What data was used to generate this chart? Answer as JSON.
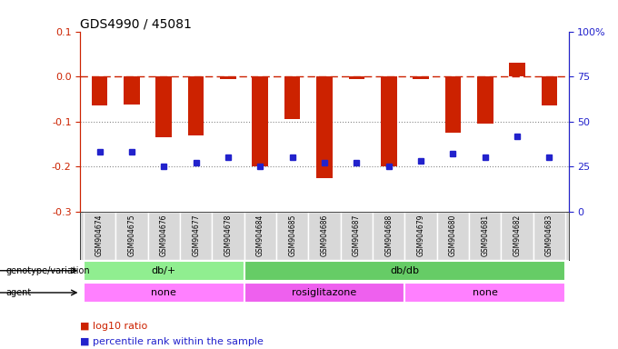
{
  "title": "GDS4990 / 45081",
  "samples": [
    "GSM904674",
    "GSM904675",
    "GSM904676",
    "GSM904677",
    "GSM904678",
    "GSM904684",
    "GSM904685",
    "GSM904686",
    "GSM904687",
    "GSM904688",
    "GSM904679",
    "GSM904680",
    "GSM904681",
    "GSM904682",
    "GSM904683"
  ],
  "log10_ratio": [
    -0.065,
    -0.062,
    -0.135,
    -0.13,
    -0.005,
    -0.2,
    -0.095,
    -0.225,
    -0.005,
    -0.2,
    -0.005,
    -0.125,
    -0.105,
    0.03,
    -0.065
  ],
  "percentile": [
    33,
    33,
    25,
    27,
    30,
    25,
    30,
    27,
    27,
    25,
    28,
    32,
    30,
    42,
    30
  ],
  "genotype_groups": [
    {
      "label": "db/+",
      "start": 0,
      "end": 5,
      "color": "#90EE90"
    },
    {
      "label": "db/db",
      "start": 5,
      "end": 15,
      "color": "#66CC66"
    }
  ],
  "agent_groups": [
    {
      "label": "none",
      "start": 0,
      "end": 5,
      "color": "#FF80FF"
    },
    {
      "label": "rosiglitazone",
      "start": 5,
      "end": 10,
      "color": "#EE60EE"
    },
    {
      "label": "none",
      "start": 10,
      "end": 15,
      "color": "#FF80FF"
    }
  ],
  "bar_color": "#CC2200",
  "dot_color": "#2222CC",
  "zero_line_color": "#CC2200",
  "grid_color": "#888888",
  "ylim_left": [
    -0.3,
    0.1
  ],
  "ylim_right": [
    0,
    100
  ],
  "yticks_left": [
    -0.3,
    -0.2,
    -0.1,
    0.0,
    0.1
  ],
  "yticks_right": [
    0,
    25,
    50,
    75,
    100
  ],
  "sample_cell_color": "#D8D8D8",
  "sample_cell_edge": "white",
  "row_label_fontsize": 7,
  "bar_width": 0.5,
  "dot_markersize": 5,
  "label_fontsize": 5.5,
  "group_fontsize": 8,
  "title_fontsize": 10
}
